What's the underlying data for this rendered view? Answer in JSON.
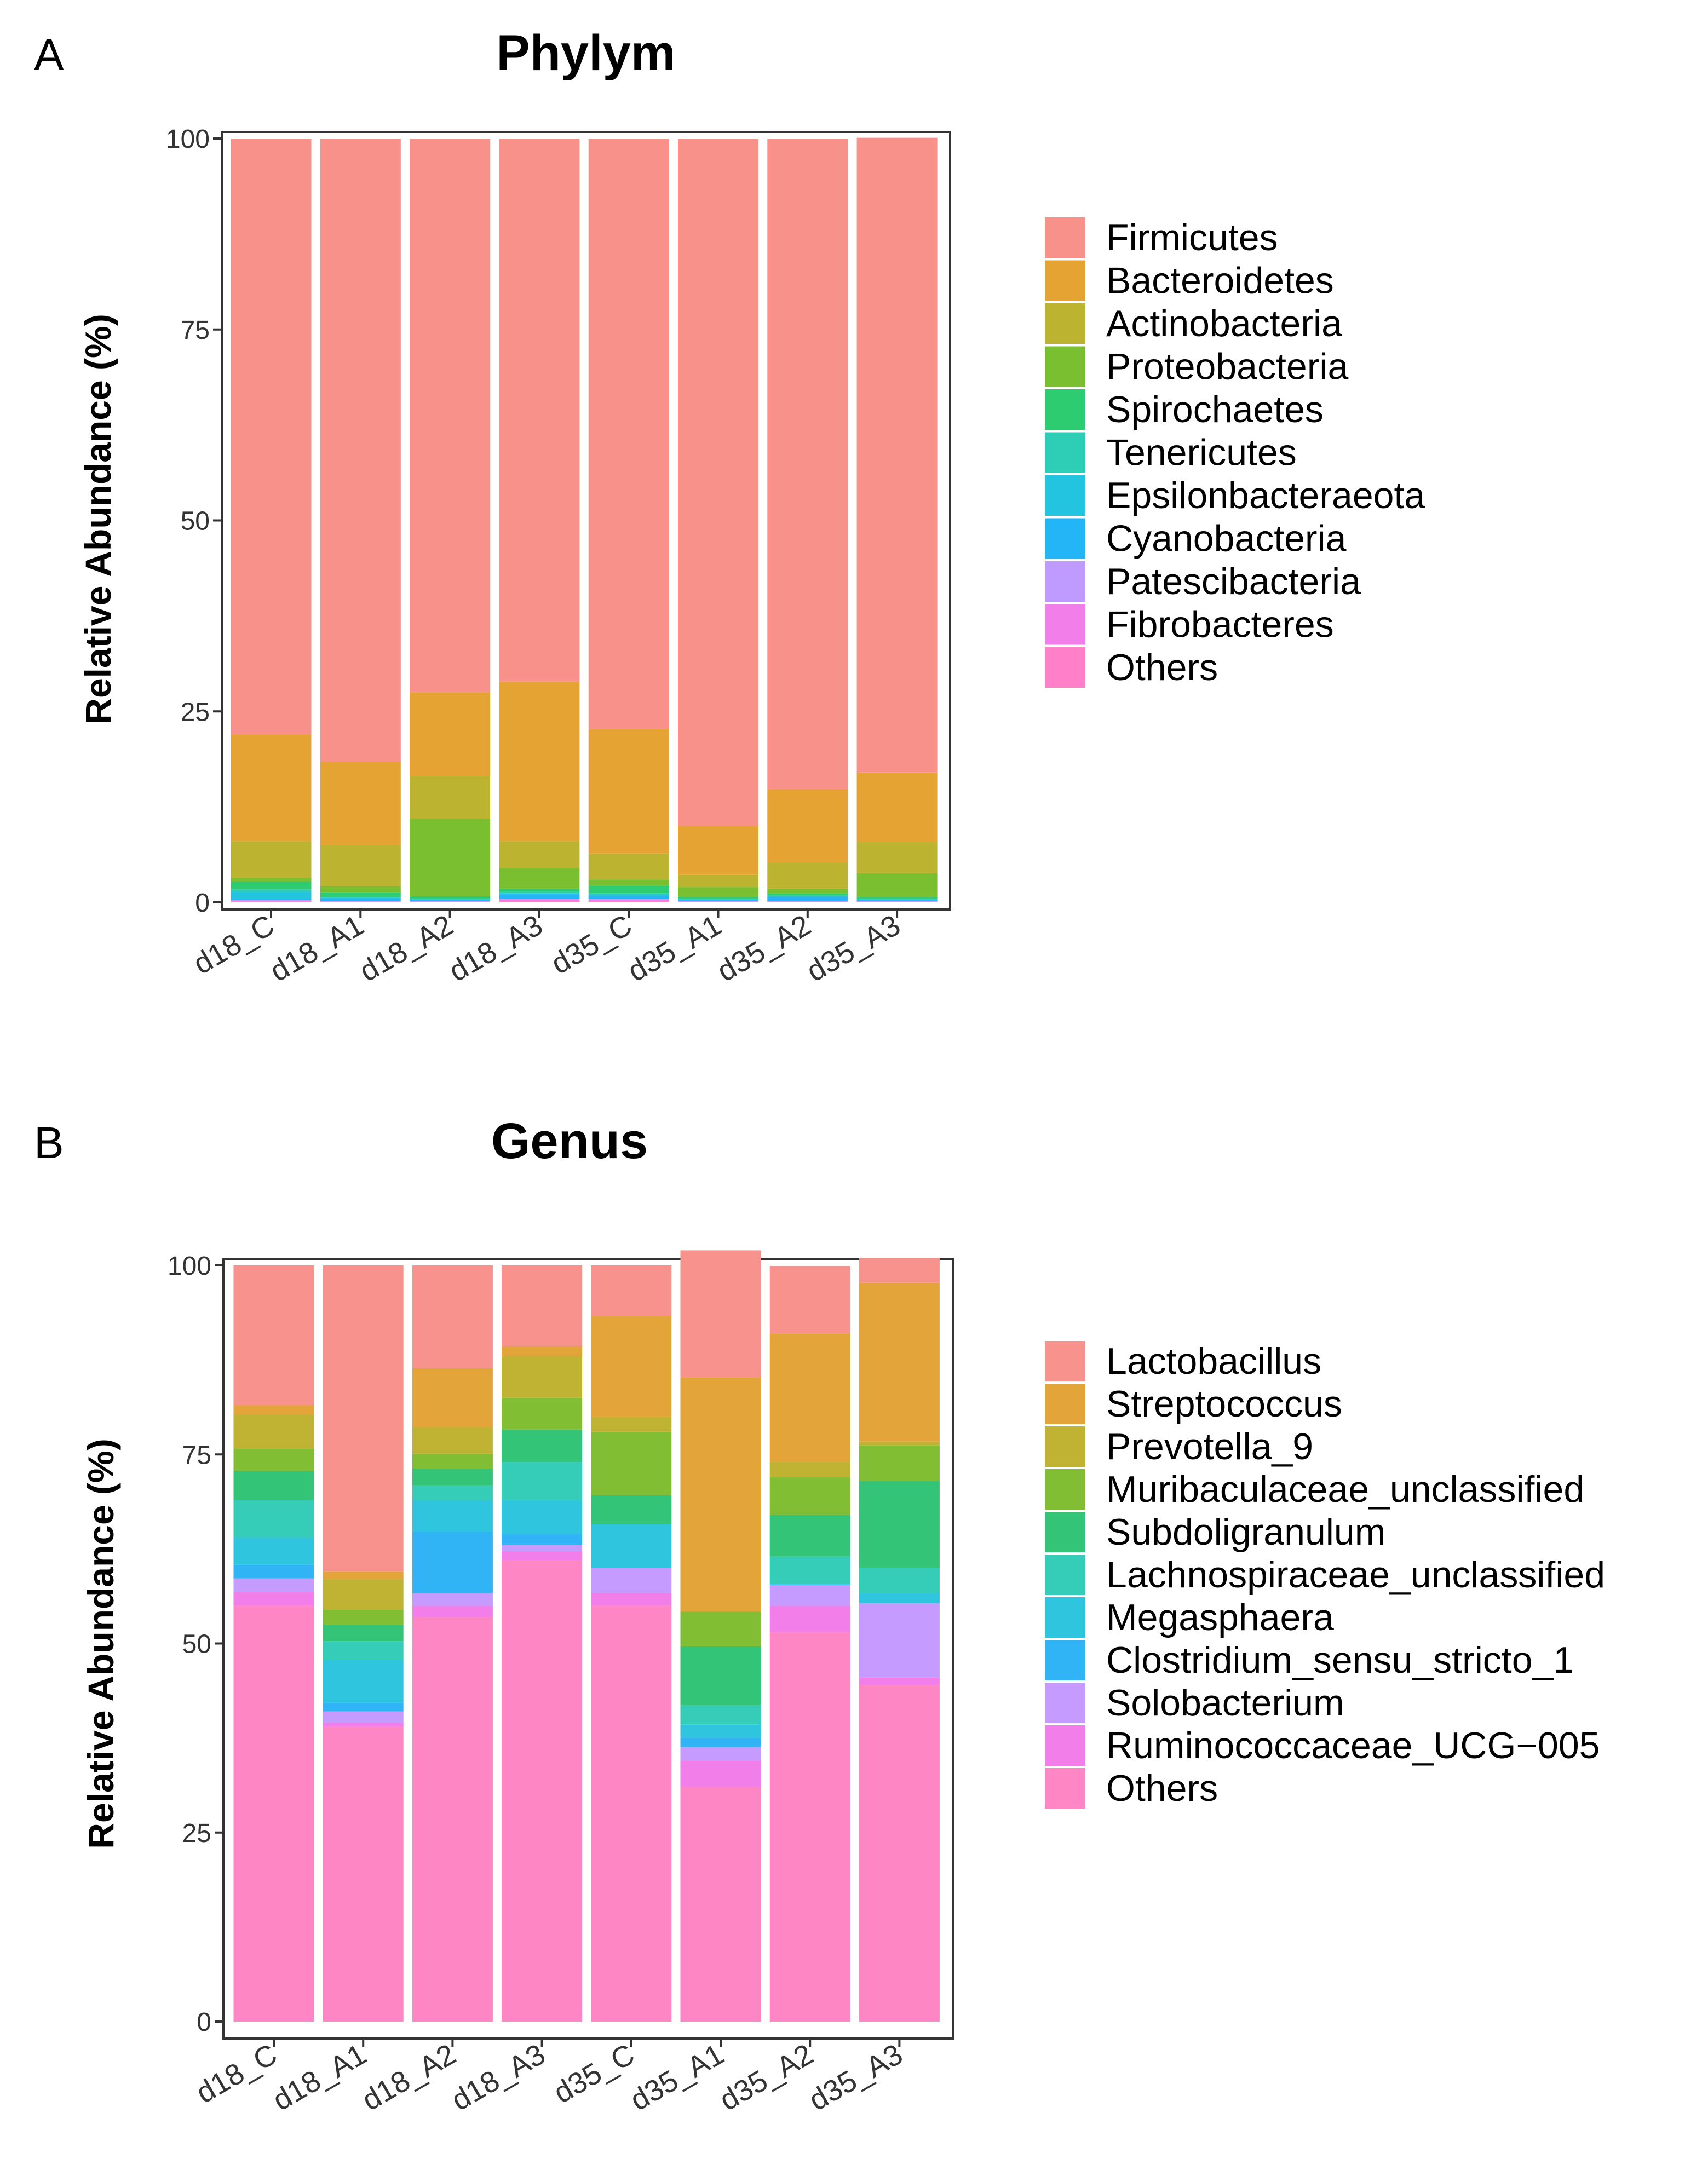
{
  "chart_data": [
    {
      "panel": "A",
      "type": "bar",
      "stacked": true,
      "title": "Phylym",
      "xlabel": "",
      "ylabel": "Relative Abundance (%)",
      "ylim": [
        0,
        100
      ],
      "yticks": [
        0,
        25,
        50,
        75,
        100
      ],
      "categories": [
        "d18_C",
        "d18_A1",
        "d18_A2",
        "d18_A3",
        "d35_C",
        "d35_A1",
        "d35_A2",
        "d35_A3"
      ],
      "legend_position": "right",
      "series": [
        {
          "name": "Others",
          "color": "#FF7FC8",
          "values": [
            0.1,
            0.1,
            0.1,
            0.2,
            0.2,
            0.1,
            0.1,
            0.1
          ]
        },
        {
          "name": "Fibrobacteres",
          "color": "#F27EEA",
          "values": [
            0.1,
            0.0,
            0.0,
            0.2,
            0.1,
            0.0,
            0.0,
            0.0
          ]
        },
        {
          "name": "Patescibacteria",
          "color": "#BF9BFF",
          "values": [
            0.1,
            0.1,
            0.1,
            0.1,
            0.2,
            0.1,
            0.1,
            0.1
          ]
        },
        {
          "name": "Cyanobacteria",
          "color": "#24B5F7",
          "values": [
            0.2,
            0.3,
            0.1,
            0.5,
            0.3,
            0.1,
            0.5,
            0.1
          ]
        },
        {
          "name": "Epsilonbacteraeota",
          "color": "#23C4E0",
          "values": [
            0.9,
            0.1,
            0.1,
            0.2,
            0.2,
            0.1,
            0.1,
            0.1
          ]
        },
        {
          "name": "Tenericutes",
          "color": "#2ECDB5",
          "values": [
            0.3,
            0.1,
            0.1,
            0.2,
            0.2,
            0.1,
            0.1,
            0.1
          ]
        },
        {
          "name": "Spirochaetes",
          "color": "#2ECC71",
          "values": [
            1.0,
            0.6,
            0.3,
            0.4,
            1.0,
            0.2,
            0.3,
            0.2
          ]
        },
        {
          "name": "Proteobacteria",
          "color": "#79BF2F",
          "values": [
            0.5,
            0.8,
            10.1,
            2.7,
            0.8,
            1.3,
            0.6,
            3.1
          ]
        },
        {
          "name": "Actinobacteria",
          "color": "#BCB330",
          "values": [
            4.8,
            5.4,
            5.6,
            3.5,
            3.4,
            1.6,
            3.4,
            4.1
          ]
        },
        {
          "name": "Bacteroidetes",
          "color": "#E5A334",
          "values": [
            14.0,
            10.9,
            11.0,
            20.9,
            16.3,
            6.4,
            9.6,
            9.1
          ]
        },
        {
          "name": "Firmicutes",
          "color": "#F8918A",
          "values": [
            78.0,
            81.6,
            72.5,
            71.1,
            77.3,
            90.0,
            85.2,
            83.1
          ]
        }
      ],
      "legend_order": [
        "Firmicutes",
        "Bacteroidetes",
        "Actinobacteria",
        "Proteobacteria",
        "Spirochaetes",
        "Tenericutes",
        "Epsilonbacteraeota",
        "Cyanobacteria",
        "Patescibacteria",
        "Fibrobacteres",
        "Others"
      ]
    },
    {
      "panel": "B",
      "type": "bar",
      "stacked": true,
      "title": "Genus",
      "xlabel": "",
      "ylabel": "Relative Abundance (%)",
      "ylim": [
        0,
        100
      ],
      "yticks": [
        0,
        25,
        50,
        75,
        100
      ],
      "categories": [
        "d18_C",
        "d18_A1",
        "d18_A2",
        "d18_A3",
        "d35_C",
        "d35_A1",
        "d35_A2",
        "d35_A3"
      ],
      "legend_position": "right",
      "series": [
        {
          "name": "Others",
          "color": "#FF86C5",
          "values": [
            55.0,
            39.0,
            53.5,
            61.0,
            55.0,
            31.0,
            51.5,
            44.5
          ]
        },
        {
          "name": "Ruminococcaceae_UCG−005",
          "color": "#F27EEA",
          "values": [
            1.8,
            0.5,
            1.5,
            1.2,
            1.7,
            3.5,
            3.5,
            1.0
          ]
        },
        {
          "name": "Solobacterium",
          "color": "#C59BFF",
          "values": [
            1.8,
            1.5,
            1.7,
            0.8,
            3.3,
            1.8,
            2.7,
            9.8
          ]
        },
        {
          "name": "Clostridium_sensu_stricto_1",
          "color": "#30B4F5",
          "values": [
            1.8,
            1.2,
            8.1,
            1.5,
            0.0,
            1.2,
            0.1,
            0.0
          ]
        },
        {
          "name": "Megasphaera",
          "color": "#2FC5DF",
          "values": [
            3.6,
            5.6,
            4.1,
            4.5,
            5.8,
            1.8,
            0.1,
            1.4
          ]
        },
        {
          "name": "Lachnospiraceae_unclassified",
          "color": "#35CDB8",
          "values": [
            5.0,
            2.5,
            2.0,
            5.0,
            0.0,
            2.5,
            3.6,
            3.3
          ]
        },
        {
          "name": "Subdoligranulum",
          "color": "#33C477",
          "values": [
            3.8,
            2.2,
            2.2,
            4.3,
            3.8,
            7.8,
            5.5,
            11.5
          ]
        },
        {
          "name": "Muribaculaceae_unclassified",
          "color": "#81BE33",
          "values": [
            3.0,
            2.0,
            2.0,
            4.2,
            8.4,
            4.6,
            5.0,
            4.7
          ]
        },
        {
          "name": "Prevotella_9",
          "color": "#C0B233",
          "values": [
            4.5,
            4.0,
            3.5,
            5.5,
            2.0,
            0.0,
            2.0,
            0.5
          ]
        },
        {
          "name": "Streptococcus",
          "color": "#E3A43A",
          "values": [
            1.2,
            1.0,
            7.8,
            1.3,
            13.3,
            31.0,
            17.0,
            21.0
          ]
        },
        {
          "name": "Lactobacillus",
          "color": "#F8928D",
          "values": [
            18.5,
            40.5,
            13.6,
            10.7,
            6.7,
            16.8,
            8.9,
            3.3
          ]
        }
      ],
      "legend_order": [
        "Lactobacillus",
        "Streptococcus",
        "Prevotella_9",
        "Muribaculaceae_unclassified",
        "Subdoligranulum",
        "Lachnospiraceae_unclassified",
        "Megasphaera",
        "Clostridium_sensu_stricto_1",
        "Solobacterium",
        "Ruminococcaceae_UCG−005",
        "Others"
      ]
    }
  ]
}
